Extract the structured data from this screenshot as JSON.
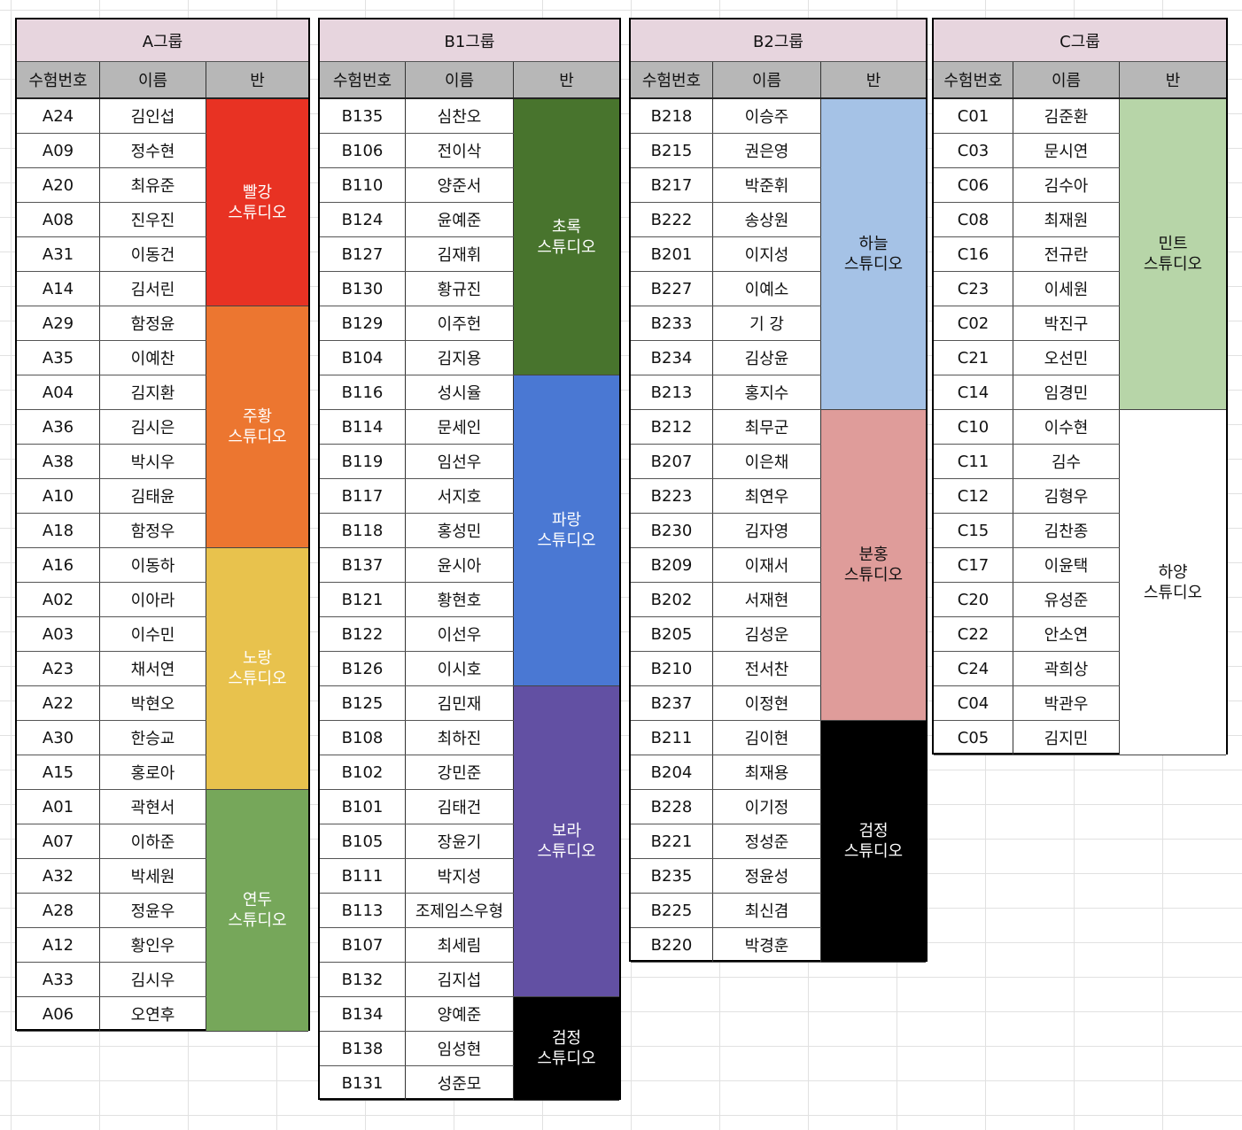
{
  "headers": {
    "exam_number": "수험번호",
    "name": "이름",
    "class": "반"
  },
  "groups": [
    {
      "key": "A",
      "title": "A그룹",
      "cols": [
        94,
        120,
        115
      ],
      "students": [
        [
          "A24",
          "김인섭"
        ],
        [
          "A09",
          "정수현"
        ],
        [
          "A20",
          "최유준"
        ],
        [
          "A08",
          "진우진"
        ],
        [
          "A31",
          "이동건"
        ],
        [
          "A14",
          "김서린"
        ],
        [
          "A29",
          "함정윤"
        ],
        [
          "A35",
          "이예찬"
        ],
        [
          "A04",
          "김지환"
        ],
        [
          "A36",
          "김시은"
        ],
        [
          "A38",
          "박시우"
        ],
        [
          "A10",
          "김태윤"
        ],
        [
          "A18",
          "함정우"
        ],
        [
          "A16",
          "이동하"
        ],
        [
          "A02",
          "이아라"
        ],
        [
          "A03",
          "이수민"
        ],
        [
          "A23",
          "채서연"
        ],
        [
          "A22",
          "박현오"
        ],
        [
          "A30",
          "한승교"
        ],
        [
          "A15",
          "홍로아"
        ],
        [
          "A01",
          "곽현서"
        ],
        [
          "A07",
          "이하준"
        ],
        [
          "A32",
          "박세원"
        ],
        [
          "A28",
          "정윤우"
        ],
        [
          "A12",
          "황인우"
        ],
        [
          "A33",
          "김시우"
        ],
        [
          "A06",
          "오연후"
        ]
      ],
      "classes": [
        {
          "name": "빨강\n스튜디오",
          "rows": 6,
          "bg": "#e83223",
          "fg": "#ffffff"
        },
        {
          "name": "주황\n스튜디오",
          "rows": 7,
          "bg": "#ec7630",
          "fg": "#ffffff"
        },
        {
          "name": "노랑\n스튜디오",
          "rows": 7,
          "bg": "#e8c24d",
          "fg": "#ffffff"
        },
        {
          "name": "연두\n스튜디오",
          "rows": 7,
          "bg": "#76a75a",
          "fg": "#ffffff"
        }
      ]
    },
    {
      "key": "B1",
      "title": "B1그룹",
      "cols": [
        97,
        122,
        119
      ],
      "students": [
        [
          "B135",
          "심찬오"
        ],
        [
          "B106",
          "전이삭"
        ],
        [
          "B110",
          "양준서"
        ],
        [
          "B124",
          "윤예준"
        ],
        [
          "B127",
          "김재휘"
        ],
        [
          "B130",
          "황규진"
        ],
        [
          "B129",
          "이주헌"
        ],
        [
          "B104",
          "김지용"
        ],
        [
          "B116",
          "성시율"
        ],
        [
          "B114",
          "문세인"
        ],
        [
          "B119",
          "임선우"
        ],
        [
          "B117",
          "서지호"
        ],
        [
          "B118",
          "홍성민"
        ],
        [
          "B137",
          "윤시아"
        ],
        [
          "B121",
          "황현호"
        ],
        [
          "B122",
          "이선우"
        ],
        [
          "B126",
          "이시호"
        ],
        [
          "B125",
          "김민재"
        ],
        [
          "B108",
          "최하진"
        ],
        [
          "B102",
          "강민준"
        ],
        [
          "B101",
          "김태건"
        ],
        [
          "B105",
          "장윤기"
        ],
        [
          "B111",
          "박지성"
        ],
        [
          "B113",
          "조제임스우형"
        ],
        [
          "B107",
          "최세림"
        ],
        [
          "B132",
          "김지섭"
        ],
        [
          "B134",
          "양예준"
        ],
        [
          "B138",
          "임성현"
        ],
        [
          "B131",
          "성준모"
        ]
      ],
      "classes": [
        {
          "name": "초록\n스튜디오",
          "rows": 8,
          "bg": "#48742d",
          "fg": "#ffffff"
        },
        {
          "name": "파랑\n스튜디오",
          "rows": 9,
          "bg": "#4a78d3",
          "fg": "#ffffff"
        },
        {
          "name": "보라\n스튜디오",
          "rows": 9,
          "bg": "#6250a3",
          "fg": "#ffffff"
        },
        {
          "name": "검정\n스튜디오",
          "rows": 3,
          "bg": "#000000",
          "fg": "#ffffff"
        }
      ]
    },
    {
      "key": "B2",
      "title": "B2그룹",
      "cols": [
        93,
        122,
        118
      ],
      "students": [
        [
          "B218",
          "이승주"
        ],
        [
          "B215",
          "권은영"
        ],
        [
          "B217",
          "박준휘"
        ],
        [
          "B222",
          "송상원"
        ],
        [
          "B201",
          "이지성"
        ],
        [
          "B227",
          "이예소"
        ],
        [
          "B233",
          "기 강"
        ],
        [
          "B234",
          "김상윤"
        ],
        [
          "B213",
          "홍지수"
        ],
        [
          "B212",
          "최무군"
        ],
        [
          "B207",
          "이은채"
        ],
        [
          "B223",
          "최연우"
        ],
        [
          "B230",
          "김자영"
        ],
        [
          "B209",
          "이재서"
        ],
        [
          "B202",
          "서재현"
        ],
        [
          "B205",
          "김성운"
        ],
        [
          "B210",
          "전서찬"
        ],
        [
          "B237",
          "이정현"
        ],
        [
          "B211",
          "김이현"
        ],
        [
          "B204",
          "최재용"
        ],
        [
          "B228",
          "이기정"
        ],
        [
          "B221",
          "정성준"
        ],
        [
          "B235",
          "정윤성"
        ],
        [
          "B225",
          "최신겸"
        ],
        [
          "B220",
          "박경훈"
        ]
      ],
      "classes": [
        {
          "name": "하늘\n스튜디오",
          "rows": 9,
          "bg": "#a5c2e6",
          "fg": "#111111"
        },
        {
          "name": "분홍\n스튜디오",
          "rows": 9,
          "bg": "#df9c9a",
          "fg": "#111111"
        },
        {
          "name": "검정\n스튜디오",
          "rows": 7,
          "bg": "#000000",
          "fg": "#ffffff"
        }
      ]
    },
    {
      "key": "C",
      "title": "C그룹",
      "cols": [
        90,
        120,
        120
      ],
      "students": [
        [
          "C01",
          "김준환"
        ],
        [
          "C03",
          "문시연"
        ],
        [
          "C06",
          "김수아"
        ],
        [
          "C08",
          "최재원"
        ],
        [
          "C16",
          "전규란"
        ],
        [
          "C23",
          "이세원"
        ],
        [
          "C02",
          "박진구"
        ],
        [
          "C21",
          "오선민"
        ],
        [
          "C14",
          "임경민"
        ],
        [
          "C10",
          "이수현"
        ],
        [
          "C11",
          "김수"
        ],
        [
          "C12",
          "김형우"
        ],
        [
          "C15",
          "김찬종"
        ],
        [
          "C17",
          "이윤택"
        ],
        [
          "C20",
          "유성준"
        ],
        [
          "C22",
          "안소연"
        ],
        [
          "C24",
          "곽희상"
        ],
        [
          "C04",
          "박관우"
        ],
        [
          "C05",
          "김지민"
        ]
      ],
      "classes": [
        {
          "name": "민트\n스튜디오",
          "rows": 9,
          "bg": "#b7d5a8",
          "fg": "#111111"
        },
        {
          "name": "하양\n스튜디오",
          "rows": 10,
          "bg": "#ffffff",
          "fg": "#111111"
        }
      ]
    }
  ]
}
